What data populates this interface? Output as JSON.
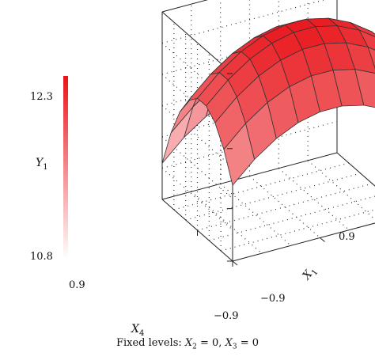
{
  "chart_data": {
    "type": "surface",
    "title": "",
    "zlabel": {
      "main": "Y",
      "sub": "1"
    },
    "x4label": {
      "main": "X",
      "sub": "4"
    },
    "x1label": {
      "main": "X",
      "sub": "1"
    },
    "z_ticks": [
      "12.3",
      "10.8"
    ],
    "x4_ticks": [
      "0.9",
      "−0.9"
    ],
    "x1_ticks": [
      "0.9",
      "−0.9"
    ],
    "zlim": [
      10.8,
      12.5
    ],
    "x4lim": [
      -0.9,
      0.9
    ],
    "x1lim": [
      -0.9,
      0.9
    ],
    "grid": "dotted",
    "surface_model": {
      "intercept": 12.45,
      "x4_linear": -0.2,
      "x1_linear": 0.1,
      "x4_quadratic": -0.85,
      "x1_quadratic": -0.45
    },
    "grid_points": 9,
    "colorbar": {
      "low_color": "#ffffff",
      "high_color": "#e8141a"
    },
    "fixed_levels": {
      "prefix": "Fixed levels: ",
      "var_a": "X",
      "var_a_sub": "2",
      "var_a_value": " = 0, ",
      "var_b": "X",
      "var_b_sub": "3",
      "var_b_value": " = 0"
    }
  }
}
